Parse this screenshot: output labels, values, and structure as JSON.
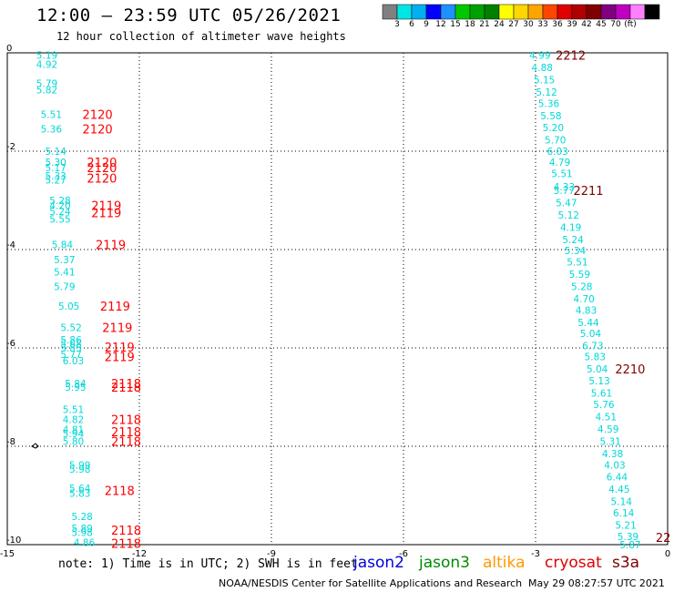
{
  "header": {
    "title": "12:00 – 23:59 UTC 05/26/2021",
    "subtitle": "12 hour collection of altimeter wave heights"
  },
  "colorbar": {
    "colors": [
      "#808080",
      "#00e5e5",
      "#00b0f0",
      "#0000ff",
      "#1e90ff",
      "#00c800",
      "#00a000",
      "#008000",
      "#ffff00",
      "#ffd700",
      "#ffa500",
      "#ff4500",
      "#e00000",
      "#b00000",
      "#800000",
      "#800080",
      "#c000c0",
      "#ff80ff",
      "#000000"
    ],
    "labels": [
      "3",
      "6",
      "9",
      "12",
      "15",
      "18",
      "21",
      "24",
      "27",
      "30",
      "33",
      "36",
      "39",
      "42",
      "45",
      "70",
      "(ft)"
    ]
  },
  "chart_data": {
    "type": "scatter",
    "xlim": [
      -15,
      0
    ],
    "ylim": [
      -10,
      0
    ],
    "x_ticks": [
      "-15",
      "-12",
      "-9",
      "-6",
      "-3",
      "0"
    ],
    "y_ticks": [
      "0",
      "-2",
      "-4",
      "-6",
      "-8",
      "-10"
    ],
    "grid": true,
    "swh_color": "#00d8d8",
    "time_color_recent": "#ff0000",
    "time_color_old": "#800000",
    "swh_points": [
      {
        "x": -14.1,
        "y": -0.05,
        "v": "5.19"
      },
      {
        "x": -14.1,
        "y": -0.23,
        "v": "4.92"
      },
      {
        "x": -14.1,
        "y": -0.62,
        "v": "5.79"
      },
      {
        "x": -14.1,
        "y": -0.75,
        "v": "5.82"
      },
      {
        "x": -14.0,
        "y": -1.25,
        "v": "5.51"
      },
      {
        "x": -14.0,
        "y": -1.55,
        "v": "5.36"
      },
      {
        "x": -13.9,
        "y": -2.0,
        "v": "5.14"
      },
      {
        "x": -13.9,
        "y": -2.22,
        "v": "5.30"
      },
      {
        "x": -13.9,
        "y": -2.33,
        "v": "5.17"
      },
      {
        "x": -13.9,
        "y": -2.5,
        "v": "5.33"
      },
      {
        "x": -13.9,
        "y": -2.58,
        "v": "5.27"
      },
      {
        "x": -13.8,
        "y": -3.0,
        "v": "5.28"
      },
      {
        "x": -13.8,
        "y": -3.1,
        "v": "4.20"
      },
      {
        "x": -13.8,
        "y": -3.22,
        "v": "5.24"
      },
      {
        "x": -13.8,
        "y": -3.38,
        "v": "5.55"
      },
      {
        "x": -13.75,
        "y": -3.9,
        "v": "5.84"
      },
      {
        "x": -13.7,
        "y": -4.2,
        "v": "5.37"
      },
      {
        "x": -13.7,
        "y": -4.45,
        "v": "5.41"
      },
      {
        "x": -13.7,
        "y": -4.75,
        "v": "5.79"
      },
      {
        "x": -13.6,
        "y": -5.15,
        "v": "5.05"
      },
      {
        "x": -13.55,
        "y": -5.58,
        "v": "5.52"
      },
      {
        "x": -13.55,
        "y": -5.83,
        "v": "5.86"
      },
      {
        "x": -13.55,
        "y": -5.92,
        "v": "5.68"
      },
      {
        "x": -13.55,
        "y": -6.0,
        "v": "5.85"
      },
      {
        "x": -13.55,
        "y": -6.13,
        "v": "5.77"
      },
      {
        "x": -13.5,
        "y": -6.26,
        "v": "6.03"
      },
      {
        "x": -13.45,
        "y": -6.72,
        "v": "5.84"
      },
      {
        "x": -13.45,
        "y": -6.8,
        "v": "5.95"
      },
      {
        "x": -13.5,
        "y": -7.25,
        "v": "5.51"
      },
      {
        "x": -13.5,
        "y": -7.45,
        "v": "4.82"
      },
      {
        "x": -13.5,
        "y": -7.66,
        "v": "4.81"
      },
      {
        "x": -13.5,
        "y": -7.74,
        "v": "5.94"
      },
      {
        "x": -13.5,
        "y": -7.9,
        "v": "5.80"
      },
      {
        "x": -13.35,
        "y": -8.38,
        "v": "5.99"
      },
      {
        "x": -13.35,
        "y": -8.46,
        "v": "5.98"
      },
      {
        "x": -13.35,
        "y": -8.85,
        "v": "5.64"
      },
      {
        "x": -13.35,
        "y": -8.95,
        "v": "5.83"
      },
      {
        "x": -13.3,
        "y": -9.43,
        "v": "5.28"
      },
      {
        "x": -13.3,
        "y": -9.67,
        "v": "5.89"
      },
      {
        "x": -13.3,
        "y": -9.75,
        "v": "5.98"
      },
      {
        "x": -13.25,
        "y": -9.95,
        "v": "4.86"
      },
      {
        "x": -2.9,
        "y": -0.05,
        "v": "4.99"
      },
      {
        "x": -2.85,
        "y": -0.3,
        "v": "4.88"
      },
      {
        "x": -2.8,
        "y": -0.55,
        "v": "5.15"
      },
      {
        "x": -2.75,
        "y": -0.8,
        "v": "5.12"
      },
      {
        "x": -2.7,
        "y": -1.03,
        "v": "5.36"
      },
      {
        "x": -2.65,
        "y": -1.28,
        "v": "5.58"
      },
      {
        "x": -2.6,
        "y": -1.52,
        "v": "5.20"
      },
      {
        "x": -2.55,
        "y": -1.77,
        "v": "5.70"
      },
      {
        "x": -2.5,
        "y": -2.0,
        "v": "6.03"
      },
      {
        "x": -2.45,
        "y": -2.22,
        "v": "4.79"
      },
      {
        "x": -2.4,
        "y": -2.45,
        "v": "5.51"
      },
      {
        "x": -2.35,
        "y": -2.72,
        "v": "4.33"
      },
      {
        "x": -2.35,
        "y": -2.8,
        "v": "5.77"
      },
      {
        "x": -2.3,
        "y": -3.05,
        "v": "5.47"
      },
      {
        "x": -2.25,
        "y": -3.3,
        "v": "5.12"
      },
      {
        "x": -2.2,
        "y": -3.55,
        "v": "4.19"
      },
      {
        "x": -2.15,
        "y": -3.8,
        "v": "5.24"
      },
      {
        "x": -2.1,
        "y": -4.02,
        "v": "5.34"
      },
      {
        "x": -2.05,
        "y": -4.25,
        "v": "5.51"
      },
      {
        "x": -2.0,
        "y": -4.5,
        "v": "5.59"
      },
      {
        "x": -1.95,
        "y": -4.75,
        "v": "5.28"
      },
      {
        "x": -1.9,
        "y": -5.0,
        "v": "4.70"
      },
      {
        "x": -1.85,
        "y": -5.23,
        "v": "4.83"
      },
      {
        "x": -1.8,
        "y": -5.48,
        "v": "5.44"
      },
      {
        "x": -1.75,
        "y": -5.7,
        "v": "5.04"
      },
      {
        "x": -1.7,
        "y": -5.95,
        "v": "6.73"
      },
      {
        "x": -1.65,
        "y": -6.18,
        "v": "5.83"
      },
      {
        "x": -1.6,
        "y": -6.43,
        "v": "5.04"
      },
      {
        "x": -1.55,
        "y": -6.67,
        "v": "5.13"
      },
      {
        "x": -1.5,
        "y": -6.92,
        "v": "5.61"
      },
      {
        "x": -1.45,
        "y": -7.15,
        "v": "5.76"
      },
      {
        "x": -1.4,
        "y": -7.4,
        "v": "4.51"
      },
      {
        "x": -1.35,
        "y": -7.65,
        "v": "4.59"
      },
      {
        "x": -1.3,
        "y": -7.9,
        "v": "5.31"
      },
      {
        "x": -1.25,
        "y": -8.15,
        "v": "4.38"
      },
      {
        "x": -1.2,
        "y": -8.38,
        "v": "4.03"
      },
      {
        "x": -1.15,
        "y": -8.62,
        "v": "6.44"
      },
      {
        "x": -1.1,
        "y": -8.87,
        "v": "4.45"
      },
      {
        "x": -1.05,
        "y": -9.12,
        "v": "5.14"
      },
      {
        "x": -1.0,
        "y": -9.35,
        "v": "6.14"
      },
      {
        "x": -0.95,
        "y": -9.6,
        "v": "5.21"
      },
      {
        "x": -0.9,
        "y": -9.83,
        "v": "5.39"
      },
      {
        "x": -0.85,
        "y": -10.0,
        "v": "5.87"
      }
    ],
    "time_labels": [
      {
        "x": -12.95,
        "y": -1.25,
        "v": "2120",
        "c": "recent"
      },
      {
        "x": -12.95,
        "y": -1.55,
        "v": "2120",
        "c": "recent"
      },
      {
        "x": -12.85,
        "y": -2.22,
        "v": "2120",
        "c": "recent"
      },
      {
        "x": -12.85,
        "y": -2.33,
        "v": "2120",
        "c": "recent"
      },
      {
        "x": -12.85,
        "y": -2.55,
        "v": "2120",
        "c": "recent"
      },
      {
        "x": -12.75,
        "y": -3.1,
        "v": "2119",
        "c": "recent"
      },
      {
        "x": -12.75,
        "y": -3.25,
        "v": "2119",
        "c": "recent"
      },
      {
        "x": -12.65,
        "y": -3.9,
        "v": "2119",
        "c": "recent"
      },
      {
        "x": -12.55,
        "y": -5.15,
        "v": "2119",
        "c": "recent"
      },
      {
        "x": -12.5,
        "y": -5.58,
        "v": "2119",
        "c": "recent"
      },
      {
        "x": -12.45,
        "y": -5.98,
        "v": "2119",
        "c": "recent"
      },
      {
        "x": -12.45,
        "y": -6.18,
        "v": "2119",
        "c": "recent"
      },
      {
        "x": -12.3,
        "y": -6.72,
        "v": "2118",
        "c": "recent"
      },
      {
        "x": -12.3,
        "y": -6.8,
        "v": "2118",
        "c": "recent"
      },
      {
        "x": -12.3,
        "y": -7.45,
        "v": "2118",
        "c": "recent"
      },
      {
        "x": -12.3,
        "y": -7.7,
        "v": "2118",
        "c": "recent"
      },
      {
        "x": -12.3,
        "y": -7.9,
        "v": "2118",
        "c": "recent"
      },
      {
        "x": -12.45,
        "y": -8.9,
        "v": "2118",
        "c": "recent"
      },
      {
        "x": -12.3,
        "y": -9.7,
        "v": "2118",
        "c": "recent"
      },
      {
        "x": -12.3,
        "y": -9.97,
        "v": "2118",
        "c": "recent"
      },
      {
        "x": -2.2,
        "y": -0.05,
        "v": "2212",
        "c": "old"
      },
      {
        "x": -1.8,
        "y": -2.8,
        "v": "2211",
        "c": "old"
      },
      {
        "x": -0.85,
        "y": -6.43,
        "v": "2210",
        "c": "old"
      },
      {
        "x": -0.1,
        "y": -9.85,
        "v": "22",
        "c": "old"
      }
    ]
  },
  "footer": {
    "note": "note:  1) Time is in UTC; 2) SWH is in feet",
    "satellites": [
      {
        "name": "jason2",
        "color": "#0000e0"
      },
      {
        "name": "jason3",
        "color": "#008c00"
      },
      {
        "name": "altika",
        "color": "#ff9900"
      },
      {
        "name": "cryosat",
        "color": "#dd0000"
      },
      {
        "name": "s3a",
        "color": "#800000"
      }
    ],
    "source": "NOAA/NESDIS Center for Satellite Applications and Research",
    "timestamp": "May 29 08:27:57 UTC 2021"
  }
}
